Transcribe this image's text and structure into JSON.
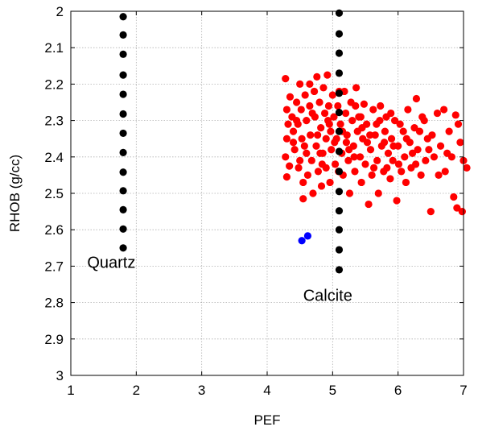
{
  "chart_data": {
    "type": "scatter",
    "title": "",
    "xlabel": "PEF",
    "ylabel": "RHOB (g/cc)",
    "xlim": [
      1,
      7
    ],
    "ylim": [
      2,
      3
    ],
    "y_reversed": true,
    "grid": true,
    "xticks": [
      1,
      2,
      3,
      4,
      5,
      6,
      7
    ],
    "yticks": [
      2,
      2.1,
      2.2,
      2.3,
      2.4,
      2.5,
      2.6,
      2.7,
      2.8,
      2.9,
      3
    ],
    "annotations": [
      {
        "text": "Quartz",
        "x": 1.25,
        "y": 2.705
      },
      {
        "text": "Calcite",
        "x": 4.55,
        "y": 2.795
      }
    ],
    "series": [
      {
        "color": "#000000",
        "points": [
          [
            1.8,
            2.015
          ],
          [
            1.8,
            2.065
          ],
          [
            1.8,
            2.118
          ],
          [
            1.8,
            2.175
          ],
          [
            1.8,
            2.228
          ],
          [
            1.8,
            2.282
          ],
          [
            1.8,
            2.335
          ],
          [
            1.8,
            2.388
          ],
          [
            1.8,
            2.442
          ],
          [
            1.8,
            2.493
          ],
          [
            1.8,
            2.545
          ],
          [
            1.8,
            2.598
          ],
          [
            1.8,
            2.65
          ]
        ]
      },
      {
        "color": "#ff0000",
        "points": [
          [
            4.28,
            2.185
          ],
          [
            4.35,
            2.235
          ],
          [
            4.3,
            2.27
          ],
          [
            4.32,
            2.31
          ],
          [
            4.3,
            2.35
          ],
          [
            4.28,
            2.4
          ],
          [
            4.3,
            2.455
          ],
          [
            4.34,
            2.425
          ],
          [
            4.38,
            2.29
          ],
          [
            4.4,
            2.33
          ],
          [
            4.42,
            2.38
          ],
          [
            4.45,
            2.25
          ],
          [
            4.47,
            2.31
          ],
          [
            4.48,
            2.43
          ],
          [
            4.5,
            2.2
          ],
          [
            4.52,
            2.27
          ],
          [
            4.53,
            2.35
          ],
          [
            4.55,
            2.47
          ],
          [
            4.55,
            2.515
          ],
          [
            4.58,
            2.23
          ],
          [
            4.6,
            2.3
          ],
          [
            4.6,
            2.39
          ],
          [
            4.62,
            2.45
          ],
          [
            4.65,
            2.26
          ],
          [
            4.66,
            2.34
          ],
          [
            4.68,
            2.41
          ],
          [
            4.7,
            2.5
          ],
          [
            4.72,
            2.22
          ],
          [
            4.73,
            2.29
          ],
          [
            4.75,
            2.37
          ],
          [
            4.76,
            2.18
          ],
          [
            4.78,
            2.44
          ],
          [
            4.8,
            2.25
          ],
          [
            4.82,
            2.32
          ],
          [
            4.83,
            2.48
          ],
          [
            4.85,
            2.39
          ],
          [
            4.86,
            2.21
          ],
          [
            4.88,
            2.28
          ],
          [
            4.9,
            2.35
          ],
          [
            4.9,
            2.43
          ],
          [
            4.92,
            2.175
          ],
          [
            4.94,
            2.26
          ],
          [
            4.95,
            2.31
          ],
          [
            4.96,
            2.47
          ],
          [
            4.98,
            2.38
          ],
          [
            5.0,
            2.23
          ],
          [
            5.02,
            2.29
          ],
          [
            5.04,
            2.42
          ],
          [
            5.06,
            2.35
          ],
          [
            5.08,
            2.26
          ],
          [
            5.12,
            2.31
          ],
          [
            5.14,
            2.39
          ],
          [
            5.16,
            2.45
          ],
          [
            5.18,
            2.22
          ],
          [
            5.2,
            2.28
          ],
          [
            5.22,
            2.34
          ],
          [
            5.24,
            2.41
          ],
          [
            5.26,
            2.5
          ],
          [
            5.28,
            2.25
          ],
          [
            5.3,
            2.3
          ],
          [
            5.32,
            2.37
          ],
          [
            5.34,
            2.44
          ],
          [
            5.36,
            2.21
          ],
          [
            5.38,
            2.33
          ],
          [
            5.4,
            2.29
          ],
          [
            5.42,
            2.4
          ],
          [
            5.44,
            2.47
          ],
          [
            5.46,
            2.35
          ],
          [
            5.48,
            2.255
          ],
          [
            5.5,
            2.42
          ],
          [
            5.52,
            2.31
          ],
          [
            5.55,
            2.53
          ],
          [
            5.58,
            2.38
          ],
          [
            5.6,
            2.45
          ],
          [
            5.62,
            2.27
          ],
          [
            5.65,
            2.34
          ],
          [
            5.68,
            2.41
          ],
          [
            5.7,
            2.5
          ],
          [
            5.72,
            2.3
          ],
          [
            5.75,
            2.37
          ],
          [
            5.78,
            2.44
          ],
          [
            5.8,
            2.33
          ],
          [
            5.82,
            2.29
          ],
          [
            5.85,
            2.39
          ],
          [
            5.88,
            2.46
          ],
          [
            5.9,
            2.35
          ],
          [
            5.92,
            2.41
          ],
          [
            5.95,
            2.3
          ],
          [
            5.98,
            2.52
          ],
          [
            6.0,
            2.37
          ],
          [
            6.05,
            2.44
          ],
          [
            6.08,
            2.33
          ],
          [
            6.1,
            2.4
          ],
          [
            6.15,
            2.27
          ],
          [
            6.18,
            2.36
          ],
          [
            6.2,
            2.43
          ],
          [
            6.25,
            2.32
          ],
          [
            6.28,
            2.24
          ],
          [
            6.3,
            2.38
          ],
          [
            6.35,
            2.45
          ],
          [
            6.4,
            2.3
          ],
          [
            6.45,
            2.35
          ],
          [
            6.5,
            2.55
          ],
          [
            6.55,
            2.4
          ],
          [
            6.6,
            2.28
          ],
          [
            6.62,
            2.45
          ],
          [
            6.7,
            2.27
          ],
          [
            6.72,
            2.44
          ],
          [
            6.78,
            2.33
          ],
          [
            6.82,
            2.4
          ],
          [
            6.85,
            2.51
          ],
          [
            6.88,
            2.285
          ],
          [
            6.9,
            2.54
          ],
          [
            6.92,
            2.31
          ],
          [
            6.95,
            2.36
          ],
          [
            6.98,
            2.55
          ],
          [
            7.0,
            2.41
          ],
          [
            7.05,
            2.43
          ],
          [
            4.4,
            2.36
          ],
          [
            4.5,
            2.41
          ],
          [
            4.65,
            2.2
          ],
          [
            4.77,
            2.34
          ],
          [
            4.84,
            2.42
          ],
          [
            4.93,
            2.3
          ],
          [
            5.03,
            2.36
          ],
          [
            5.1,
            2.22
          ],
          [
            5.15,
            2.33
          ],
          [
            5.25,
            2.38
          ],
          [
            5.35,
            2.26
          ],
          [
            5.45,
            2.32
          ],
          [
            5.53,
            2.36
          ],
          [
            5.63,
            2.43
          ],
          [
            5.73,
            2.26
          ],
          [
            5.83,
            2.43
          ],
          [
            5.93,
            2.37
          ],
          [
            6.03,
            2.31
          ],
          [
            6.12,
            2.47
          ],
          [
            6.22,
            2.39
          ],
          [
            6.33,
            2.33
          ],
          [
            6.42,
            2.41
          ],
          [
            6.52,
            2.34
          ],
          [
            6.65,
            2.37
          ],
          [
            6.75,
            2.39
          ],
          [
            4.45,
            2.3
          ],
          [
            4.57,
            2.37
          ],
          [
            4.69,
            2.28
          ],
          [
            4.81,
            2.39
          ],
          [
            4.97,
            2.33
          ],
          [
            5.09,
            2.44
          ],
          [
            5.21,
            2.36
          ],
          [
            5.33,
            2.4
          ],
          [
            5.43,
            2.29
          ],
          [
            5.57,
            2.34
          ],
          [
            5.67,
            2.31
          ],
          [
            5.79,
            2.36
          ],
          [
            5.89,
            2.28
          ],
          [
            6.01,
            2.42
          ],
          [
            6.13,
            2.35
          ],
          [
            6.27,
            2.42
          ],
          [
            6.37,
            2.29
          ],
          [
            6.47,
            2.38
          ]
        ]
      },
      {
        "color": "#0000ff",
        "points": [
          [
            4.53,
            2.63
          ],
          [
            4.62,
            2.617
          ]
        ]
      },
      {
        "color": "#000000",
        "points": [
          [
            5.1,
            2.005
          ],
          [
            5.1,
            2.062
          ],
          [
            5.1,
            2.115
          ],
          [
            5.1,
            2.17
          ],
          [
            5.1,
            2.225
          ],
          [
            5.1,
            2.278
          ],
          [
            5.1,
            2.33
          ],
          [
            5.1,
            2.385
          ],
          [
            5.1,
            2.44
          ],
          [
            5.1,
            2.495
          ],
          [
            5.1,
            2.548
          ],
          [
            5.1,
            2.6
          ],
          [
            5.1,
            2.655
          ],
          [
            5.1,
            2.71
          ]
        ]
      }
    ]
  }
}
